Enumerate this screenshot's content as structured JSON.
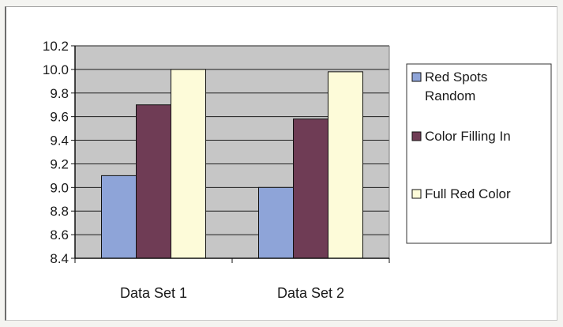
{
  "chart_data": {
    "type": "bar",
    "title": "",
    "xlabel": "",
    "ylabel": "",
    "categories": [
      "Data Set 1",
      "Data Set 2"
    ],
    "series": [
      {
        "name": "Red Spots Random",
        "values": [
          9.1,
          9.0
        ],
        "color": "#8ea4d8"
      },
      {
        "name": "Color Filling In",
        "values": [
          9.7,
          9.58
        ],
        "color": "#6f3c55"
      },
      {
        "name": "Full Red Color",
        "values": [
          10.0,
          9.98
        ],
        "color": "#fdfbd9"
      }
    ],
    "ylim": [
      8.4,
      10.2
    ],
    "yticks": [
      "8.4",
      "8.6",
      "8.8",
      "9.0",
      "9.2",
      "9.4",
      "9.6",
      "9.8",
      "10.0",
      "10.2"
    ],
    "grid": true,
    "legend_position": "right",
    "plot_background": "#c6c6c6",
    "legend_lines": [
      [
        "Red Spots",
        "Random"
      ],
      [
        "Color Filling In"
      ],
      [
        "Full Red Color"
      ]
    ]
  }
}
